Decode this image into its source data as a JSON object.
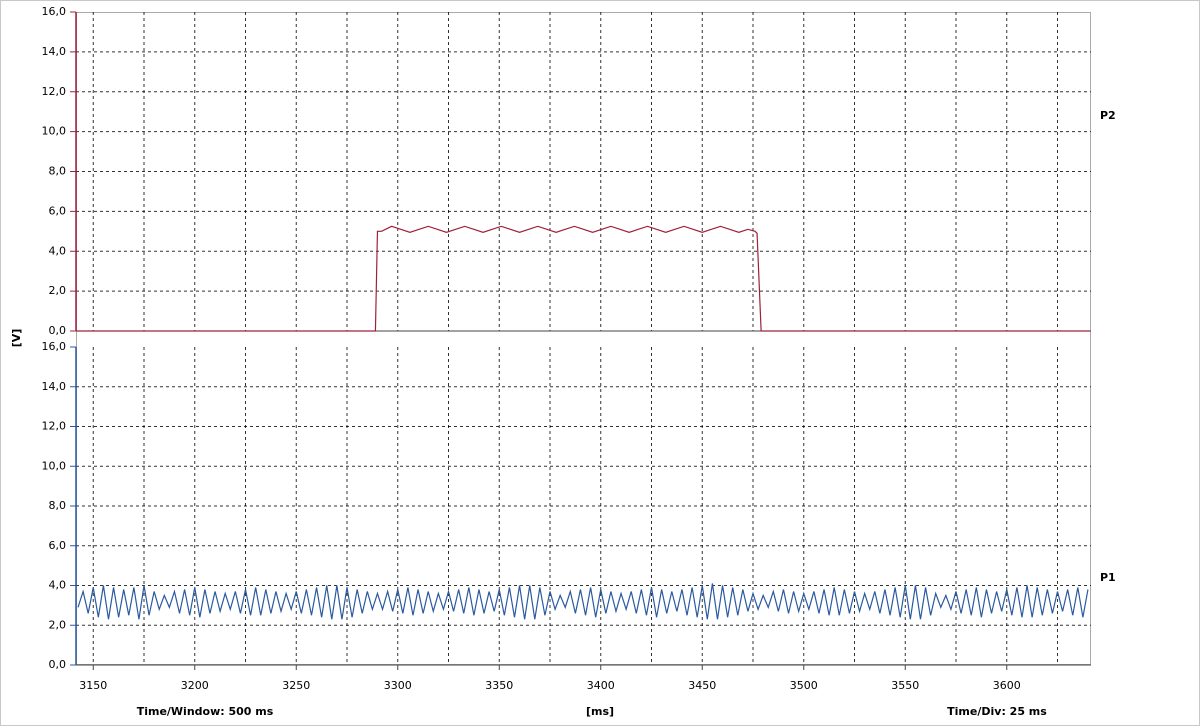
{
  "chart_data": [
    {
      "type": "line",
      "ylabel": "[V]",
      "ylim": [
        0,
        16
      ],
      "yticks": [
        {
          "value": 0,
          "label": "0,0"
        },
        {
          "value": 2,
          "label": "2,0"
        },
        {
          "value": 4,
          "label": "4,0"
        },
        {
          "value": 6,
          "label": "6,0"
        },
        {
          "value": 8,
          "label": "8,0"
        },
        {
          "value": 10,
          "label": "10,0"
        },
        {
          "value": 12,
          "label": "12,0"
        },
        {
          "value": 14,
          "label": "14,0"
        },
        {
          "value": 16,
          "label": "16,0"
        }
      ],
      "grid": true,
      "series": [
        {
          "name": "P2",
          "color": "#a0203a",
          "x": [
            3142,
            3289,
            3290,
            3292,
            3297,
            3301.5,
            3306,
            3310.5,
            3315,
            3319.5,
            3324,
            3328.5,
            3333,
            3337.5,
            3342,
            3346.5,
            3351,
            3355.5,
            3360,
            3364.5,
            3369,
            3373.5,
            3378,
            3382.5,
            3387,
            3391.5,
            3396,
            3400.5,
            3405,
            3409.5,
            3414,
            3418.5,
            3423,
            3427.5,
            3432,
            3436.5,
            3441,
            3445.5,
            3450,
            3454.5,
            3459,
            3463.5,
            3468,
            3472.5,
            3476,
            3477,
            3479,
            3641
          ],
          "values": [
            0,
            0,
            5.0,
            5.0,
            5.25,
            5.1,
            4.95,
            5.1,
            5.25,
            5.1,
            4.95,
            5.1,
            5.25,
            5.1,
            4.95,
            5.1,
            5.25,
            5.1,
            4.95,
            5.1,
            5.25,
            5.1,
            4.95,
            5.1,
            5.25,
            5.1,
            4.95,
            5.1,
            5.25,
            5.1,
            4.95,
            5.1,
            5.25,
            5.1,
            4.95,
            5.1,
            5.25,
            5.1,
            4.95,
            5.1,
            5.25,
            5.1,
            4.95,
            5.1,
            5.0,
            4.9,
            0,
            0
          ]
        }
      ]
    },
    {
      "type": "line",
      "ylim": [
        0,
        16
      ],
      "yticks": [
        {
          "value": 0,
          "label": "0,0"
        },
        {
          "value": 2,
          "label": "2,0"
        },
        {
          "value": 4,
          "label": "4,0"
        },
        {
          "value": 6,
          "label": "6,0"
        },
        {
          "value": 8,
          "label": "8,0"
        },
        {
          "value": 10,
          "label": "10,0"
        },
        {
          "value": 12,
          "label": "12,0"
        },
        {
          "value": 14,
          "label": "14,0"
        },
        {
          "value": 16,
          "label": "16,0"
        }
      ],
      "grid": true,
      "xlim": [
        3141.5,
        3641.5
      ],
      "xticks": [
        3150,
        3200,
        3250,
        3300,
        3350,
        3400,
        3450,
        3500,
        3550,
        3600
      ],
      "minor_xticks": [
        3175,
        3225,
        3275,
        3325,
        3375,
        3425,
        3475,
        3525,
        3575,
        3625
      ],
      "xlabel": "[ms]",
      "annotations": [
        "Time/Window: 500 ms",
        "Time/Div: 25 ms"
      ],
      "series": [
        {
          "name": "P1",
          "color": "#2a5aa0",
          "x": [
            3142.5,
            3145,
            3147.5,
            3150,
            3152.5,
            3155,
            3157.5,
            3160,
            3162.5,
            3165,
            3167.5,
            3170,
            3172.5,
            3175,
            3177.5,
            3180,
            3182.5,
            3185,
            3187.5,
            3190,
            3192.5,
            3195,
            3197.5,
            3200,
            3202.5,
            3205,
            3207.5,
            3210,
            3212.5,
            3215,
            3217.5,
            3220,
            3222.5,
            3225,
            3227.5,
            3230,
            3232.5,
            3235,
            3237.5,
            3240,
            3242.5,
            3245,
            3247.5,
            3250,
            3252.5,
            3255,
            3257.5,
            3260,
            3262.5,
            3265,
            3267.5,
            3270,
            3272.5,
            3275,
            3277.5,
            3280,
            3282.5,
            3285,
            3287.5,
            3290,
            3292.5,
            3295,
            3297.5,
            3300,
            3302.5,
            3305,
            3307.5,
            3310,
            3312.5,
            3315,
            3317.5,
            3320,
            3322.5,
            3325,
            3327.5,
            3330,
            3332.5,
            3335,
            3337.5,
            3340,
            3342.5,
            3345,
            3347.5,
            3350,
            3352.5,
            3355,
            3357.5,
            3360,
            3362.5,
            3365,
            3367.5,
            3370,
            3372.5,
            3375,
            3377.5,
            3380,
            3382.5,
            3385,
            3387.5,
            3390,
            3392.5,
            3395,
            3397.5,
            3400,
            3402.5,
            3405,
            3407.5,
            3410,
            3412.5,
            3415,
            3417.5,
            3420,
            3422.5,
            3425,
            3427.5,
            3430,
            3432.5,
            3435,
            3437.5,
            3440,
            3442.5,
            3445,
            3447.5,
            3450,
            3452.5,
            3455,
            3457.5,
            3460,
            3462.5,
            3465,
            3467.5,
            3470,
            3472.5,
            3475,
            3477.5,
            3480,
            3482.5,
            3485,
            3487.5,
            3490,
            3492.5,
            3495,
            3497.5,
            3500,
            3502.5,
            3505,
            3507.5,
            3510,
            3512.5,
            3515,
            3517.5,
            3520,
            3522.5,
            3525,
            3527.5,
            3530,
            3532.5,
            3535,
            3537.5,
            3540,
            3542.5,
            3545,
            3547.5,
            3550,
            3552.5,
            3555,
            3557.5,
            3560,
            3562.5,
            3565,
            3567.5,
            3570,
            3572.5,
            3575,
            3577.5,
            3580,
            3582.5,
            3585,
            3587.5,
            3590,
            3592.5,
            3595,
            3597.5,
            3600,
            3602.5,
            3605,
            3607.5,
            3610,
            3612.5,
            3615,
            3617.5,
            3620,
            3622.5,
            3625,
            3627.5,
            3630,
            3632.5,
            3635,
            3637.5,
            3640
          ],
          "values": [
            2.9,
            3.7,
            2.6,
            3.9,
            2.4,
            4.0,
            2.3,
            3.9,
            2.4,
            3.8,
            2.5,
            3.9,
            2.3,
            4.0,
            2.5,
            3.7,
            2.8,
            3.5,
            2.9,
            3.7,
            2.6,
            3.8,
            2.5,
            3.9,
            2.4,
            3.8,
            2.6,
            3.7,
            2.7,
            3.6,
            2.8,
            3.7,
            2.6,
            3.8,
            2.5,
            3.9,
            2.5,
            3.8,
            2.6,
            3.7,
            2.7,
            3.6,
            2.8,
            3.7,
            2.6,
            3.8,
            2.5,
            3.9,
            2.4,
            4.0,
            2.3,
            4.0,
            2.3,
            3.9,
            2.4,
            3.8,
            2.6,
            3.7,
            2.8,
            3.6,
            2.8,
            3.7,
            2.7,
            3.8,
            2.6,
            3.9,
            2.5,
            3.8,
            2.6,
            3.7,
            2.7,
            3.6,
            2.8,
            3.7,
            2.7,
            3.8,
            2.6,
            3.9,
            2.5,
            3.8,
            2.6,
            3.7,
            2.7,
            3.8,
            2.5,
            3.9,
            2.4,
            4.0,
            2.3,
            4.0,
            2.3,
            3.9,
            2.5,
            3.7,
            2.8,
            3.5,
            2.9,
            3.7,
            2.6,
            3.8,
            2.5,
            3.9,
            2.4,
            3.8,
            2.6,
            3.7,
            2.7,
            3.6,
            2.8,
            3.7,
            2.6,
            3.8,
            2.5,
            3.9,
            2.4,
            3.8,
            2.6,
            3.7,
            2.7,
            3.8,
            2.5,
            3.9,
            2.4,
            4.0,
            2.3,
            4.1,
            2.3,
            4.0,
            2.4,
            3.9,
            2.5,
            3.8,
            2.7,
            3.6,
            2.8,
            3.5,
            2.9,
            3.7,
            2.7,
            3.8,
            2.6,
            3.7,
            2.7,
            3.6,
            2.8,
            3.7,
            2.6,
            3.8,
            2.5,
            3.9,
            2.5,
            3.8,
            2.6,
            3.7,
            2.7,
            3.6,
            2.8,
            3.7,
            2.6,
            3.8,
            2.5,
            3.9,
            2.4,
            4.0,
            2.3,
            4.0,
            2.3,
            3.9,
            2.5,
            3.6,
            2.9,
            3.5,
            2.8,
            3.7,
            2.6,
            3.8,
            2.5,
            3.9,
            2.4,
            3.8,
            2.6,
            3.7,
            2.7,
            3.8,
            2.5,
            3.9,
            2.4,
            4.0,
            2.4,
            3.9,
            2.5,
            3.8,
            2.6,
            3.7,
            2.7,
            3.8,
            2.5,
            3.9,
            2.4,
            3.8
          ]
        }
      ]
    }
  ]
}
